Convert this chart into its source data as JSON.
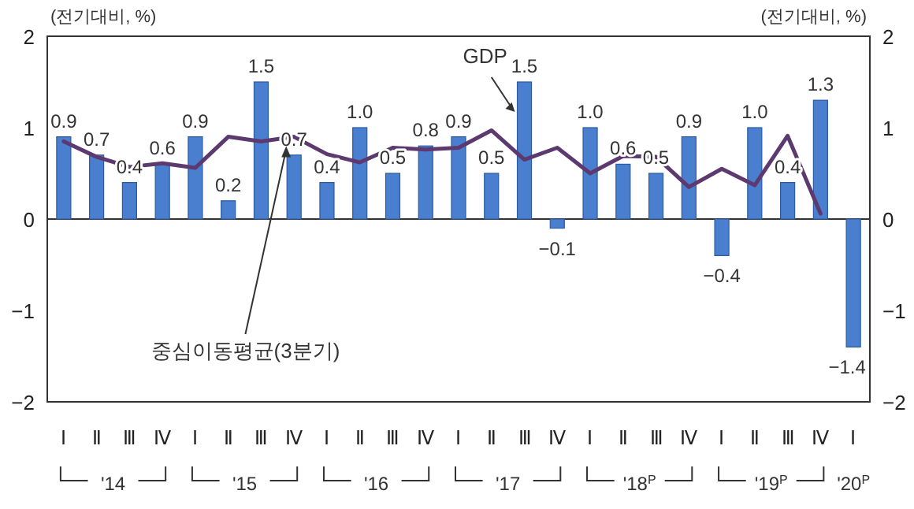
{
  "chart_data": {
    "type": "bar",
    "ylabel": "(전기대비, %)",
    "y2label": "(전기대비, %)",
    "categories": [
      "Ⅰ",
      "Ⅱ",
      "Ⅲ",
      "Ⅳ",
      "Ⅰ",
      "Ⅱ",
      "Ⅲ",
      "Ⅳ",
      "Ⅰ",
      "Ⅱ",
      "Ⅲ",
      "Ⅳ",
      "Ⅰ",
      "Ⅱ",
      "Ⅲ",
      "Ⅳ",
      "Ⅰ",
      "Ⅱ",
      "Ⅲ",
      "Ⅳ",
      "Ⅰ",
      "Ⅱ",
      "Ⅲ",
      "Ⅳ",
      "Ⅰ"
    ],
    "series": [
      {
        "name": "GDP",
        "color": "#4a7fd0",
        "values": [
          0.9,
          0.7,
          0.4,
          0.6,
          0.9,
          0.2,
          1.5,
          0.7,
          0.4,
          1.0,
          0.5,
          0.8,
          0.9,
          0.5,
          1.5,
          -0.1,
          1.0,
          0.6,
          0.5,
          0.9,
          -0.4,
          1.0,
          0.4,
          1.3,
          -1.4
        ],
        "value_labels": [
          "0.9",
          "0.7",
          "0.4",
          "0.6",
          "0.9",
          "0.2",
          "1.5",
          "0.7",
          "0.4",
          "1.0",
          "0.5",
          "0.8",
          "0.9",
          "0.5",
          "1.5",
          "−0.1",
          "1.0",
          "0.6",
          "0.5",
          "0.9",
          "−0.4",
          "1.0",
          "0.4",
          "1.3",
          "−1.4"
        ]
      },
      {
        "name": "중심이동평균(3분기)",
        "type": "line",
        "color": "#5c3a70",
        "values": [
          0.85,
          0.68,
          0.57,
          0.61,
          0.56,
          0.9,
          0.85,
          0.9,
          0.71,
          0.62,
          0.78,
          0.76,
          0.78,
          0.97,
          0.65,
          0.78,
          0.5,
          0.69,
          0.68,
          0.35,
          0.55,
          0.37,
          0.91,
          0.06,
          null
        ]
      }
    ],
    "ylim": [
      -2,
      2
    ],
    "yticks": [
      {
        "value": -2,
        "label": "−2"
      },
      {
        "value": -1,
        "label": "−1"
      },
      0,
      1,
      2
    ],
    "y2lim": [
      -2,
      2
    ],
    "y2ticks": [
      {
        "value": -2,
        "label": "−2"
      },
      {
        "value": -1,
        "label": "−1"
      },
      0,
      1,
      2
    ],
    "annotations": [
      "'14",
      "'15",
      "'16",
      "'17",
      "'18$^{P}$",
      "'19$^{P}$",
      "'20$^{P}$"
    ],
    "line_style": "solid"
  }
}
